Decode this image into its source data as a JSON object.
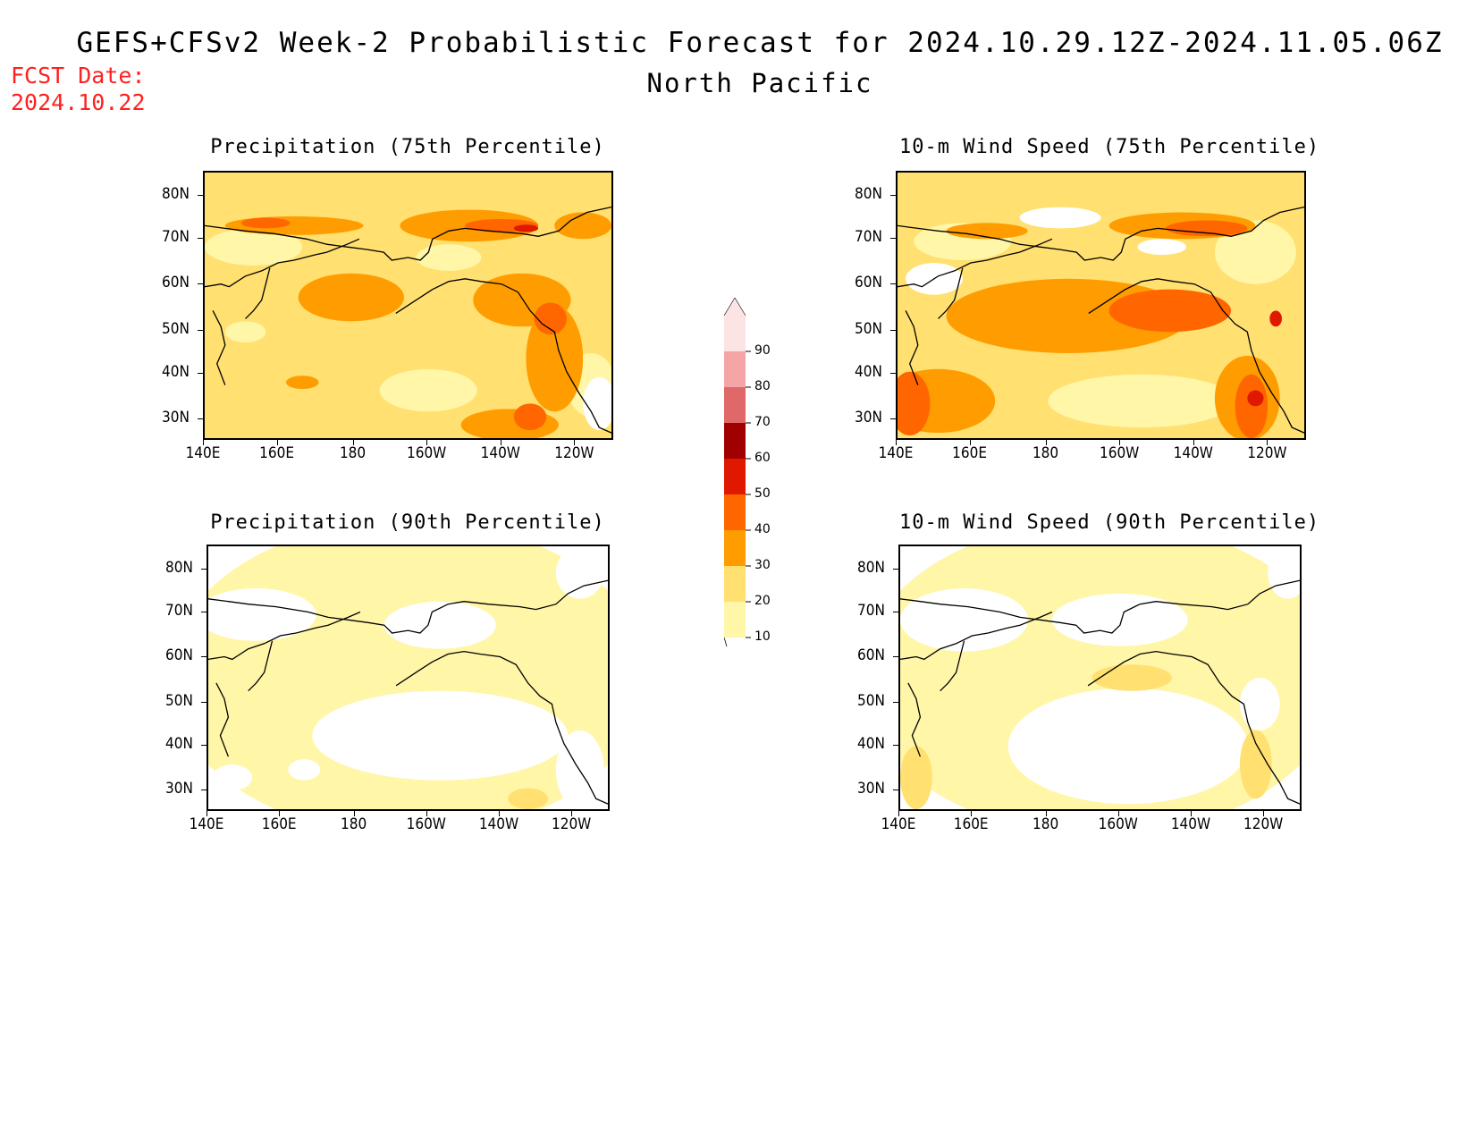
{
  "header": {
    "title": "GEFS+CFSv2 Week-2 Probabilistic Forecast for 2024.10.29.12Z-2024.11.05.06Z",
    "subtitle": "North Pacific",
    "fcst_label": "FCST Date:",
    "fcst_date": "2024.10.22"
  },
  "panels": [
    {
      "id": "precip75",
      "title": "Precipitation (75th Percentile)"
    },
    {
      "id": "wind75",
      "title": "10-m Wind Speed (75th Percentile)"
    },
    {
      "id": "precip90",
      "title": "Precipitation (90th Percentile)"
    },
    {
      "id": "wind90",
      "title": "10-m Wind Speed (90th Percentile)"
    }
  ],
  "axes": {
    "lat_labels": [
      "80N",
      "70N",
      "60N",
      "50N",
      "40N",
      "30N"
    ],
    "lon_labels": [
      "140E",
      "160E",
      "180",
      "160W",
      "140W",
      "120W"
    ]
  },
  "colorbar": {
    "levels": [
      "90",
      "80",
      "70",
      "60",
      "50",
      "40",
      "30",
      "20",
      "10"
    ],
    "colors": [
      "#fde4e4",
      "#f4a6a6",
      "#e06868",
      "#a00000",
      "#e01800",
      "#ff6600",
      "#ff9c00",
      "#ffe070",
      "#fff6a8"
    ]
  },
  "palette": {
    "none": "#ffffff",
    "c10": "#fff6a8",
    "c20": "#ffe070",
    "c30": "#ff9c00",
    "c40": "#ff6600",
    "c50": "#e01800",
    "c60": "#a00000",
    "title_red": "#ff2020"
  }
}
